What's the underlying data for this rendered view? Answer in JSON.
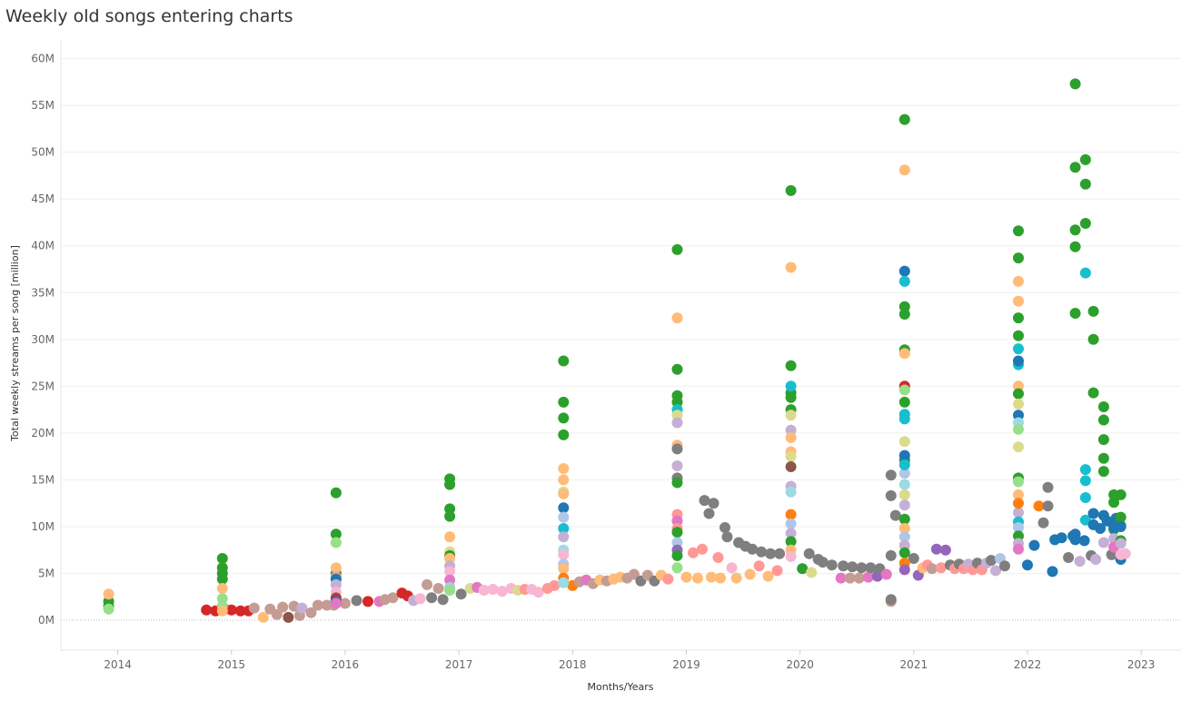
{
  "chart_data": {
    "type": "scatter",
    "title": "Weekly old songs entering charts",
    "xlabel": "Months/Years",
    "ylabel": "Total weekly streams per song [million]",
    "x_unit": "year",
    "xlim": [
      2013.5,
      2023.35
    ],
    "ylim": [
      -3.2,
      62
    ],
    "x_ticks": [
      2014,
      2015,
      2016,
      2017,
      2018,
      2019,
      2020,
      2021,
      2022,
      2023
    ],
    "x_tick_labels": [
      "2014",
      "2015",
      "2016",
      "2017",
      "2018",
      "2019",
      "2020",
      "2021",
      "2022",
      "2023"
    ],
    "y_ticks": [
      0,
      5,
      10,
      15,
      20,
      25,
      30,
      35,
      40,
      45,
      50,
      55,
      60
    ],
    "y_tick_labels": [
      "0M",
      "5M",
      "10M",
      "15M",
      "20M",
      "25M",
      "30M",
      "35M",
      "40M",
      "45M",
      "50M",
      "55M",
      "60M"
    ],
    "grid": "horizontal",
    "legend": "none",
    "colors": [
      "#2ca02c",
      "#ffbb78",
      "#d62728",
      "#1f77b4",
      "#17becf",
      "#98df8a",
      "#c5b0d5",
      "#ff9896",
      "#7f7f7f",
      "#e377c2",
      "#dbdb8d",
      "#9467bd",
      "#ff7f0e",
      "#8c564b",
      "#c49c94",
      "#f7b6d2",
      "#aec7e8",
      "#9edae5"
    ],
    "series_x": [
      2013.92,
      2014.92,
      2015.92,
      2016.92,
      2017.92,
      2018.92,
      2019.92,
      2020.92,
      2021.92,
      2022.42,
      2022.51,
      2022.58,
      2022.67,
      2022.76,
      2022.82
    ],
    "series_colors": [
      [
        "#2ca02c",
        "#2ca02c",
        "#ffbb78",
        "#98df8a"
      ],
      [
        "#2ca02c",
        "#2ca02c",
        "#2ca02c",
        "#2ca02c",
        "#ffbb78",
        "#98df8a",
        "#98df8a",
        "#ffbb78"
      ],
      [
        "#2ca02c",
        "#2ca02c",
        "#98df8a",
        "#2ca02c",
        "#ffbb78",
        "#ff9896",
        "#1f77b4",
        "#c5b0d5",
        "#f7b6d2",
        "#7f7f7f",
        "#d62728",
        "#1f77b4",
        "#e377c2"
      ],
      [
        "#2ca02c",
        "#2ca02c",
        "#2ca02c",
        "#2ca02c",
        "#ffbb78",
        "#dbdb8d",
        "#2ca02c",
        "#ffbb78",
        "#c5b0d5",
        "#f7b6d2",
        "#e377c2",
        "#aec7e8",
        "#98df8a"
      ],
      [
        "#2ca02c",
        "#2ca02c",
        "#2ca02c",
        "#2ca02c",
        "#ffbb78",
        "#ffbb78",
        "#1f77b4",
        "#aec7e8",
        "#dbdb8d",
        "#ffbb78",
        "#17becf",
        "#c5b0d5",
        "#9edae5",
        "#f7b6d2",
        "#aec7e8",
        "#ffbb78",
        "#ff7f0e",
        "#9edae5"
      ],
      [
        "#2ca02c",
        "#ffbb78",
        "#2ca02c",
        "#2ca02c",
        "#2ca02c",
        "#17becf",
        "#dbdb8d",
        "#c5b0d5",
        "#ffbb78",
        "#7f7f7f",
        "#c5b0d5",
        "#7f7f7f",
        "#2ca02c",
        "#ff9896",
        "#e377c2",
        "#ff9896",
        "#2ca02c",
        "#aec7e8",
        "#9467bd",
        "#2ca02c",
        "#98df8a"
      ],
      [
        "#2ca02c",
        "#ffbb78",
        "#2ca02c",
        "#2ca02c",
        "#2ca02c",
        "#17becf",
        "#2ca02c",
        "#dbdb8d",
        "#c5b0d5",
        "#ffbb78",
        "#ffbb78",
        "#dbdb8d",
        "#8c564b",
        "#c5b0d5",
        "#9edae5",
        "#ff7f0e",
        "#aec7e8",
        "#c5b0d5",
        "#2ca02c",
        "#ffbb78",
        "#f7b6d2"
      ],
      [
        "#2ca02c",
        "#ffbb78",
        "#1f77b4",
        "#17becf",
        "#2ca02c",
        "#2ca02c",
        "#2ca02c",
        "#ffbb78",
        "#2ca02c",
        "#d62728",
        "#98df8a",
        "#2ca02c",
        "#dbdb8d",
        "#17becf",
        "#17becf",
        "#1f77b4",
        "#aec7e8",
        "#9edae5",
        "#dbdb8d",
        "#c5b0d5",
        "#17becf",
        "#2ca02c",
        "#ffbb78",
        "#aec7e8",
        "#c5b0d5",
        "#2ca02c",
        "#ff7f0e",
        "#9467bd"
      ],
      [
        "#2ca02c",
        "#2ca02c",
        "#ffbb78",
        "#ffbb78",
        "#2ca02c",
        "#2ca02c",
        "#17becf",
        "#17becf",
        "#1f77b4",
        "#ffbb78",
        "#2ca02c",
        "#dbdb8d",
        "#1f77b4",
        "#9edae5",
        "#98df8a",
        "#2ca02c",
        "#dbdb8d",
        "#98df8a",
        "#ffbb78",
        "#c5b0d5",
        "#17becf",
        "#aec7e8",
        "#ff7f0e",
        "#2ca02c",
        "#c5b0d5",
        "#e377c2"
      ],
      [
        "#2ca02c",
        "#2ca02c",
        "#2ca02c",
        "#2ca02c",
        "#2ca02c",
        "#1f77b4",
        "#1f77b4"
      ],
      [
        "#2ca02c",
        "#2ca02c",
        "#2ca02c",
        "#17becf",
        "#17becf",
        "#17becf",
        "#17becf",
        "#17becf"
      ],
      [
        "#2ca02c",
        "#2ca02c",
        "#2ca02c",
        "#1f77b4",
        "#1f77b4"
      ],
      [
        "#2ca02c",
        "#2ca02c",
        "#2ca02c",
        "#2ca02c",
        "#2ca02c",
        "#1f77b4",
        "#c5b0d5"
      ],
      [
        "#2ca02c",
        "#2ca02c",
        "#2ca02c",
        "#1f77b4",
        "#c5b0d5",
        "#e377c2"
      ],
      [
        "#2ca02c",
        "#2ca02c",
        "#2ca02c",
        "#2ca02c",
        "#1f77b4",
        "#c5b0d5",
        "#f7b6d2"
      ]
    ],
    "series_values": [
      [
        2,
        1.5,
        2.8,
        1.2
      ],
      [
        6.6,
        5.6,
        5,
        4.4,
        3.4,
        2.3,
        1.5,
        1
      ],
      [
        13.6,
        9.2,
        8.3,
        5,
        5.6,
        4.6,
        4.4,
        3.8,
        3,
        2.4,
        2.3,
        2,
        1.8
      ],
      [
        15.1,
        14.5,
        11.9,
        11.1,
        8.9,
        7.3,
        6.9,
        6.6,
        5.8,
        5.2,
        4.3,
        3.5,
        3.2
      ],
      [
        27.7,
        23.3,
        21.6,
        19.8,
        16.2,
        15,
        12,
        11,
        13.7,
        13.5,
        9.8,
        8.9,
        7.5,
        7,
        6,
        5.5,
        4.5,
        4
      ],
      [
        39.6,
        32.3,
        26.8,
        24,
        23.3,
        22.5,
        21.9,
        21.1,
        18.7,
        18.3,
        16.5,
        15.2,
        14.7,
        11.3,
        10.6,
        9.8,
        9.4,
        8.3,
        7.5,
        6.9,
        5.6
      ],
      [
        45.9,
        37.7,
        27.2,
        24.3,
        23.8,
        25,
        22.5,
        21.9,
        20.3,
        19.5,
        18,
        17.5,
        16.4,
        14.3,
        13.7,
        11.3,
        10.3,
        9.3,
        8.4,
        7.5,
        6.8
      ],
      [
        53.5,
        48.1,
        37.3,
        36.2,
        33.5,
        32.7,
        28.9,
        28.5,
        23.3,
        25,
        24.6,
        17.1,
        19.1,
        21.5,
        22,
        17.6,
        15.7,
        14.5,
        13.4,
        12.3,
        16.6,
        10.8,
        9.8,
        8.9,
        8,
        7.2,
        6.1,
        5.4
      ],
      [
        41.6,
        38.7,
        36.2,
        34.1,
        32.3,
        30.4,
        29,
        27.3,
        27.7,
        25,
        24.2,
        23.1,
        21.9,
        21.1,
        20.4,
        15.2,
        18.5,
        14.8,
        13.4,
        11.5,
        10.5,
        9.9,
        12.5,
        9,
        8.2,
        7.6
      ],
      [
        57.3,
        48.4,
        41.7,
        39.9,
        32.8,
        9.2,
        8.6
      ],
      [
        49.2,
        46.6,
        42.4,
        37.1,
        16.1,
        14.9,
        13.1,
        10.7
      ],
      [
        33,
        30,
        24.3,
        11.4,
        10.2
      ],
      [
        22.8,
        21.4,
        19.3,
        17.3,
        15.9,
        11.2,
        8.3
      ],
      [
        13.4,
        12.6,
        9.7,
        9.9,
        8.7,
        7.8
      ],
      [
        13.4,
        11,
        10.1,
        8.5,
        10,
        8.2,
        7
      ]
    ],
    "baseline_points": [
      [
        2014.78,
        1.1,
        "#d62728"
      ],
      [
        2014.86,
        1.0,
        "#d62728"
      ],
      [
        2014.94,
        1.2,
        "#d62728"
      ],
      [
        2015.0,
        1.1,
        "#d62728"
      ],
      [
        2015.08,
        1.0,
        "#d62728"
      ],
      [
        2015.15,
        1.0,
        "#d62728"
      ],
      [
        2015.2,
        1.3,
        "#c49c94"
      ],
      [
        2015.28,
        0.3,
        "#ffbb78"
      ],
      [
        2015.34,
        1.2,
        "#c49c94"
      ],
      [
        2015.4,
        0.6,
        "#c49c94"
      ],
      [
        2015.45,
        1.4,
        "#c49c94"
      ],
      [
        2015.5,
        0.3,
        "#8c564b"
      ],
      [
        2015.55,
        1.5,
        "#c49c94"
      ],
      [
        2015.6,
        0.5,
        "#c49c94"
      ],
      [
        2015.62,
        1.3,
        "#c5b0d5"
      ],
      [
        2015.7,
        0.8,
        "#c49c94"
      ],
      [
        2015.76,
        1.6,
        "#c49c94"
      ],
      [
        2015.84,
        1.6,
        "#c49c94"
      ],
      [
        2015.9,
        1.6,
        "#c49c94"
      ],
      [
        2016.0,
        1.8,
        "#c49c94"
      ],
      [
        2016.1,
        2.1,
        "#7f7f7f"
      ],
      [
        2016.2,
        2.0,
        "#d62728"
      ],
      [
        2016.3,
        2.0,
        "#e377c2"
      ],
      [
        2016.35,
        2.2,
        "#c49c94"
      ],
      [
        2016.42,
        2.4,
        "#c49c94"
      ],
      [
        2016.5,
        2.9,
        "#d62728"
      ],
      [
        2016.55,
        2.6,
        "#d62728"
      ],
      [
        2016.6,
        2.1,
        "#c5b0d5"
      ],
      [
        2016.66,
        2.3,
        "#f7b6d2"
      ],
      [
        2016.72,
        3.8,
        "#c49c94"
      ],
      [
        2016.76,
        2.4,
        "#7f7f7f"
      ],
      [
        2016.82,
        3.4,
        "#c49c94"
      ],
      [
        2016.86,
        2.2,
        "#7f7f7f"
      ],
      [
        2017.02,
        2.8,
        "#7f7f7f"
      ],
      [
        2017.1,
        3.4,
        "#dbdb8d"
      ],
      [
        2017.16,
        3.5,
        "#e377c2"
      ],
      [
        2017.22,
        3.2,
        "#f7b6d2"
      ],
      [
        2017.3,
        3.3,
        "#f7b6d2"
      ],
      [
        2017.38,
        3.1,
        "#f7b6d2"
      ],
      [
        2017.46,
        3.4,
        "#f7b6d2"
      ],
      [
        2017.52,
        3.2,
        "#dbdb8d"
      ],
      [
        2017.58,
        3.3,
        "#ff9896"
      ],
      [
        2017.64,
        3.3,
        "#f7b6d2"
      ],
      [
        2017.7,
        3.0,
        "#f7b6d2"
      ],
      [
        2017.78,
        3.4,
        "#ff9896"
      ],
      [
        2017.84,
        3.7,
        "#ff9896"
      ],
      [
        2018.0,
        3.7,
        "#ff7f0e"
      ],
      [
        2018.06,
        4.1,
        "#c49c94"
      ],
      [
        2018.12,
        4.3,
        "#e377c2"
      ],
      [
        2018.18,
        3.9,
        "#c49c94"
      ],
      [
        2018.24,
        4.3,
        "#ffbb78"
      ],
      [
        2018.3,
        4.2,
        "#c49c94"
      ],
      [
        2018.36,
        4.4,
        "#ffbb78"
      ],
      [
        2018.42,
        4.6,
        "#ffbb78"
      ],
      [
        2018.48,
        4.5,
        "#c49c94"
      ],
      [
        2018.54,
        4.9,
        "#c49c94"
      ],
      [
        2018.6,
        4.2,
        "#7f7f7f"
      ],
      [
        2018.66,
        4.8,
        "#c49c94"
      ],
      [
        2018.72,
        4.2,
        "#7f7f7f"
      ],
      [
        2018.78,
        4.8,
        "#ffbb78"
      ],
      [
        2018.84,
        4.4,
        "#ff9896"
      ],
      [
        2019.0,
        4.6,
        "#ffbb78"
      ],
      [
        2019.06,
        7.2,
        "#ff9896"
      ],
      [
        2019.1,
        4.5,
        "#ffbb78"
      ],
      [
        2019.14,
        7.6,
        "#ff9896"
      ],
      [
        2019.16,
        12.8,
        "#7f7f7f"
      ],
      [
        2019.2,
        11.4,
        "#7f7f7f"
      ],
      [
        2019.22,
        4.6,
        "#ffbb78"
      ],
      [
        2019.24,
        12.5,
        "#7f7f7f"
      ],
      [
        2019.28,
        6.7,
        "#ff9896"
      ],
      [
        2019.3,
        4.5,
        "#ffbb78"
      ],
      [
        2019.34,
        9.9,
        "#7f7f7f"
      ],
      [
        2019.36,
        8.9,
        "#7f7f7f"
      ],
      [
        2019.4,
        5.6,
        "#f7b6d2"
      ],
      [
        2019.44,
        4.5,
        "#ffbb78"
      ],
      [
        2019.46,
        8.3,
        "#7f7f7f"
      ],
      [
        2019.52,
        7.9,
        "#7f7f7f"
      ],
      [
        2019.56,
        4.9,
        "#ffbb78"
      ],
      [
        2019.58,
        7.6,
        "#7f7f7f"
      ],
      [
        2019.64,
        5.8,
        "#ff9896"
      ],
      [
        2019.66,
        7.3,
        "#7f7f7f"
      ],
      [
        2019.72,
        4.7,
        "#ffbb78"
      ],
      [
        2019.74,
        7.1,
        "#7f7f7f"
      ],
      [
        2019.8,
        5.3,
        "#ff9896"
      ],
      [
        2019.82,
        7.1,
        "#7f7f7f"
      ],
      [
        2020.02,
        5.5,
        "#2ca02c"
      ],
      [
        2020.08,
        7.1,
        "#7f7f7f"
      ],
      [
        2020.1,
        5.1,
        "#dbdb8d"
      ],
      [
        2020.16,
        6.5,
        "#7f7f7f"
      ],
      [
        2020.2,
        6.2,
        "#7f7f7f"
      ],
      [
        2020.28,
        5.9,
        "#7f7f7f"
      ],
      [
        2020.36,
        4.5,
        "#e377c2"
      ],
      [
        2020.38,
        5.8,
        "#7f7f7f"
      ],
      [
        2020.44,
        4.5,
        "#c49c94"
      ],
      [
        2020.46,
        5.7,
        "#7f7f7f"
      ],
      [
        2020.52,
        4.5,
        "#c49c94"
      ],
      [
        2020.54,
        5.6,
        "#7f7f7f"
      ],
      [
        2020.6,
        4.6,
        "#e377c2"
      ],
      [
        2020.62,
        5.6,
        "#7f7f7f"
      ],
      [
        2020.68,
        4.7,
        "#9467bd"
      ],
      [
        2020.7,
        5.5,
        "#7f7f7f"
      ],
      [
        2020.76,
        4.9,
        "#e377c2"
      ],
      [
        2020.8,
        2.0,
        "#c49c94"
      ],
      [
        2020.8,
        2.2,
        "#7f7f7f"
      ],
      [
        2020.8,
        6.9,
        "#7f7f7f"
      ],
      [
        2020.84,
        11.2,
        "#7f7f7f"
      ],
      [
        2020.8,
        13.3,
        "#7f7f7f"
      ],
      [
        2020.8,
        15.5,
        "#7f7f7f"
      ],
      [
        2021.0,
        6.6,
        "#7f7f7f"
      ],
      [
        2021.04,
        4.8,
        "#9467bd"
      ],
      [
        2021.08,
        5.6,
        "#ffbb78"
      ],
      [
        2021.12,
        5.9,
        "#ff9896"
      ],
      [
        2021.16,
        5.5,
        "#c49c94"
      ],
      [
        2021.2,
        7.6,
        "#9467bd"
      ],
      [
        2021.24,
        5.6,
        "#ff9896"
      ],
      [
        2021.28,
        7.5,
        "#9467bd"
      ],
      [
        2021.32,
        5.9,
        "#7f7f7f"
      ],
      [
        2021.36,
        5.5,
        "#ff9896"
      ],
      [
        2021.4,
        6.0,
        "#7f7f7f"
      ],
      [
        2021.44,
        5.5,
        "#ff9896"
      ],
      [
        2021.48,
        6.0,
        "#c5b0d5"
      ],
      [
        2021.52,
        5.4,
        "#ff9896"
      ],
      [
        2021.56,
        6.1,
        "#7f7f7f"
      ],
      [
        2021.6,
        5.4,
        "#ff9896"
      ],
      [
        2021.64,
        6.1,
        "#c5b0d5"
      ],
      [
        2021.68,
        6.4,
        "#7f7f7f"
      ],
      [
        2021.72,
        5.3,
        "#c5b0d5"
      ],
      [
        2021.76,
        6.6,
        "#aec7e8"
      ],
      [
        2021.8,
        5.8,
        "#7f7f7f"
      ],
      [
        2022.0,
        5.9,
        "#1f77b4"
      ],
      [
        2022.06,
        8.0,
        "#1f77b4"
      ],
      [
        2022.1,
        12.2,
        "#ff7f0e"
      ],
      [
        2022.14,
        10.4,
        "#7f7f7f"
      ],
      [
        2022.18,
        12.2,
        "#7f7f7f"
      ],
      [
        2022.18,
        14.2,
        "#7f7f7f"
      ],
      [
        2022.22,
        5.2,
        "#1f77b4"
      ],
      [
        2022.24,
        8.6,
        "#1f77b4"
      ],
      [
        2022.3,
        8.8,
        "#1f77b4"
      ],
      [
        2022.36,
        6.7,
        "#7f7f7f"
      ],
      [
        2022.4,
        9.0,
        "#1f77b4"
      ],
      [
        2022.46,
        6.3,
        "#c5b0d5"
      ],
      [
        2022.5,
        8.5,
        "#1f77b4"
      ],
      [
        2022.56,
        6.9,
        "#7f7f7f"
      ],
      [
        2022.6,
        6.5,
        "#c5b0d5"
      ],
      [
        2022.64,
        9.8,
        "#1f77b4"
      ],
      [
        2022.7,
        10.6,
        "#1f77b4"
      ],
      [
        2022.74,
        7.0,
        "#7f7f7f"
      ],
      [
        2022.78,
        10.9,
        "#1f77b4"
      ],
      [
        2022.82,
        6.5,
        "#1f77b4"
      ],
      [
        2022.86,
        7.1,
        "#f7b6d2"
      ]
    ]
  }
}
